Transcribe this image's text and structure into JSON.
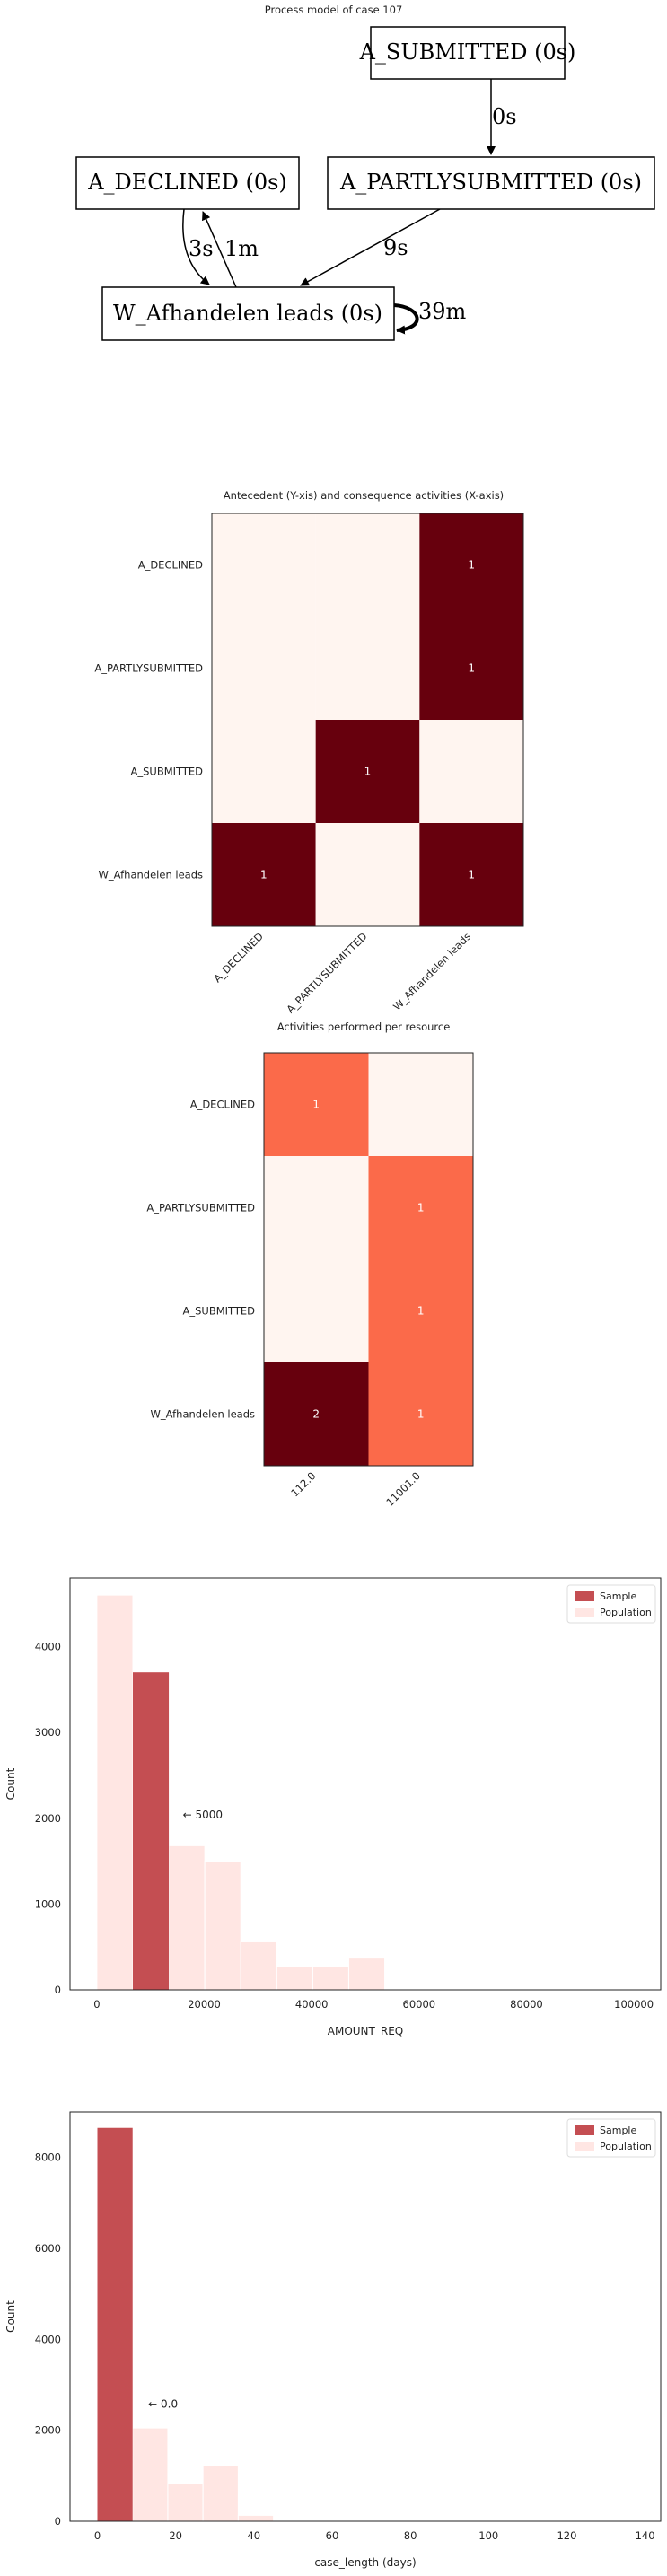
{
  "process_model": {
    "title": "Process model of case 107",
    "nodes": {
      "submitted": "A_SUBMITTED (0s)",
      "declined": "A_DECLINED (0s)",
      "partly": "A_PARTLYSUBMITTED (0s)",
      "afhandelen": "W_Afhandelen leads (0s)"
    },
    "edges": {
      "submitted_to_partly": "0s",
      "declined_to_afhandelen": "3s",
      "afhandelen_to_declined": "1m",
      "partly_to_afhandelen": "9s",
      "afhandelen_self": "39m"
    }
  },
  "colors": {
    "dark": "#67000d",
    "mid": "#fb6a4a",
    "light": "#fff5f0",
    "sample": "#c44e52",
    "population": "#ffe6e3"
  },
  "chart_data": [
    {
      "type": "heatmap",
      "title": "Antecedent (Y-xis) and consequence activities (X-axis)",
      "rows": [
        "A_DECLINED",
        "A_PARTLYSUBMITTED",
        "A_SUBMITTED",
        "W_Afhandelen leads"
      ],
      "cols": [
        "A_DECLINED",
        "A_PARTLYSUBMITTED",
        "W_Afhandelen leads"
      ],
      "values": [
        [
          0,
          0,
          1
        ],
        [
          0,
          0,
          1
        ],
        [
          0,
          1,
          0
        ],
        [
          1,
          0,
          1
        ]
      ]
    },
    {
      "type": "heatmap",
      "title": "Activities performed per resource",
      "rows": [
        "A_DECLINED",
        "A_PARTLYSUBMITTED",
        "A_SUBMITTED",
        "W_Afhandelen leads"
      ],
      "cols": [
        "112.0",
        "11001.0"
      ],
      "values": [
        [
          1,
          0
        ],
        [
          0,
          1
        ],
        [
          0,
          1
        ],
        [
          2,
          1
        ]
      ]
    },
    {
      "type": "bar",
      "xlabel": "AMOUNT_REQ",
      "ylabel": "Count",
      "xlim": [
        -5000,
        105000
      ],
      "ylim": [
        0,
        4800
      ],
      "xticks": [
        0,
        20000,
        40000,
        60000,
        80000,
        100000
      ],
      "yticks": [
        0,
        1000,
        2000,
        3000,
        4000
      ],
      "bin_width": 6700,
      "legend_position": "top-right",
      "annotation": {
        "text": "← 5000",
        "x": 16000,
        "y": 2000
      },
      "series": [
        {
          "name": "Sample",
          "bins": [
            {
              "x0": 6700,
              "x1": 13400,
              "count": 3700
            }
          ]
        },
        {
          "name": "Population",
          "bins": [
            {
              "x0": 0,
              "x1": 6700,
              "count": 4600
            },
            {
              "x0": 6700,
              "x1": 13400,
              "count": 3700
            },
            {
              "x0": 13400,
              "x1": 20100,
              "count": 1680
            },
            {
              "x0": 20100,
              "x1": 26800,
              "count": 1500
            },
            {
              "x0": 26800,
              "x1": 33500,
              "count": 560
            },
            {
              "x0": 33500,
              "x1": 40200,
              "count": 270
            },
            {
              "x0": 40200,
              "x1": 46900,
              "count": 270
            },
            {
              "x0": 46900,
              "x1": 53600,
              "count": 370
            }
          ]
        }
      ]
    },
    {
      "type": "bar",
      "xlabel": "case_length (days)",
      "ylabel": "Count",
      "xlim": [
        -7,
        144
      ],
      "ylim": [
        0,
        9000
      ],
      "xticks": [
        0,
        20,
        40,
        60,
        80,
        100,
        120,
        140
      ],
      "yticks": [
        0,
        2000,
        4000,
        6000,
        8000
      ],
      "bin_width": 9,
      "legend_position": "top-right",
      "annotation": {
        "text": "← 0.0",
        "x": 13,
        "y": 2500
      },
      "series": [
        {
          "name": "Sample",
          "bins": [
            {
              "x0": 0,
              "x1": 9,
              "count": 8650
            }
          ]
        },
        {
          "name": "Population",
          "bins": [
            {
              "x0": 0,
              "x1": 9,
              "count": 8650
            },
            {
              "x0": 9,
              "x1": 18,
              "count": 2050
            },
            {
              "x0": 18,
              "x1": 27,
              "count": 820
            },
            {
              "x0": 27,
              "x1": 36,
              "count": 1220
            },
            {
              "x0": 36,
              "x1": 45,
              "count": 130
            }
          ]
        }
      ]
    }
  ]
}
